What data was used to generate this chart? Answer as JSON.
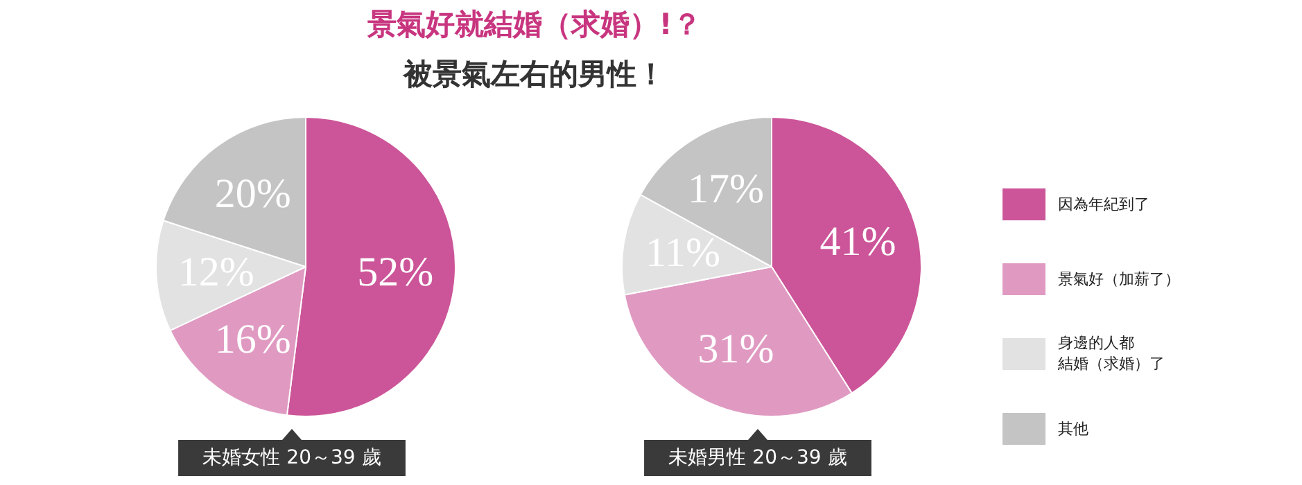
{
  "chart_data": [
    {
      "type": "pie",
      "title": "景氣好就結婚（求婚）!？",
      "subtitle": "被景氣左右的男性！",
      "xlabel": "未婚女性 20～39 歲",
      "categories": [
        "因為年紀到了",
        "景氣好（加薪了）",
        "身邊的人都結婚（求婚）了",
        "其他"
      ],
      "values": [
        52,
        16,
        12,
        20
      ],
      "colors": [
        "#cc5599",
        "#e09ac2",
        "#e2e2e2",
        "#c4c4c4"
      ],
      "value_labels": [
        "52%",
        "16%",
        "12%",
        "20%"
      ],
      "legend": "right"
    },
    {
      "type": "pie",
      "xlabel": "未婚男性 20～39 歲",
      "categories": [
        null,
        null,
        null,
        null
      ],
      "values": [
        41,
        31,
        11,
        17
      ],
      "colors": [
        "#cc5599",
        "#e09ac2",
        "#e2e2e2",
        "#c4c4c4"
      ],
      "value_labels": [
        "41%",
        "31%",
        "11%",
        "17%"
      ]
    }
  ]
}
